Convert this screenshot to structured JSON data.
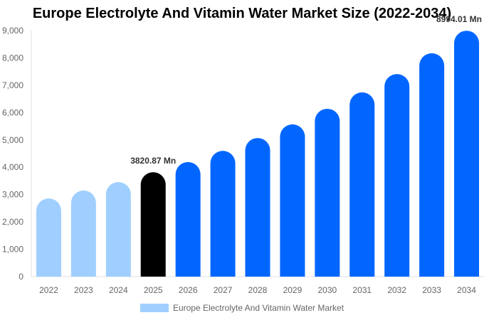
{
  "chart_data": {
    "type": "bar",
    "title": "Europe Electrolyte And Vitamin Water Market Size (2022-2034)",
    "xlabel": "",
    "ylabel": "",
    "categories": [
      "2022",
      "2023",
      "2024",
      "2025",
      "2026",
      "2027",
      "2028",
      "2029",
      "2030",
      "2031",
      "2032",
      "2033",
      "2034"
    ],
    "series": [
      {
        "name": "Europe Electrolyte And Vitamin Water Market",
        "values": [
          2860,
          3150,
          3460,
          3820.87,
          4190,
          4600,
          5070,
          5570,
          6140,
          6740,
          7410,
          8170,
          8994.01
        ]
      }
    ],
    "ylim": [
      0,
      9000
    ],
    "yticks": [
      "0",
      "1,000",
      "2,000",
      "3,000",
      "4,000",
      "5,000",
      "6,000",
      "7,000",
      "8,000",
      "9,000"
    ],
    "data_labels": [
      {
        "category": "2025",
        "text": "3820.87 Mn"
      },
      {
        "category": "2034",
        "text": "8994.01 Mn"
      }
    ],
    "colors": {
      "historic": "#a0cfff",
      "current": "#000000",
      "forecast": "#0066ff"
    },
    "grid": false,
    "legend_position": "bottom"
  }
}
